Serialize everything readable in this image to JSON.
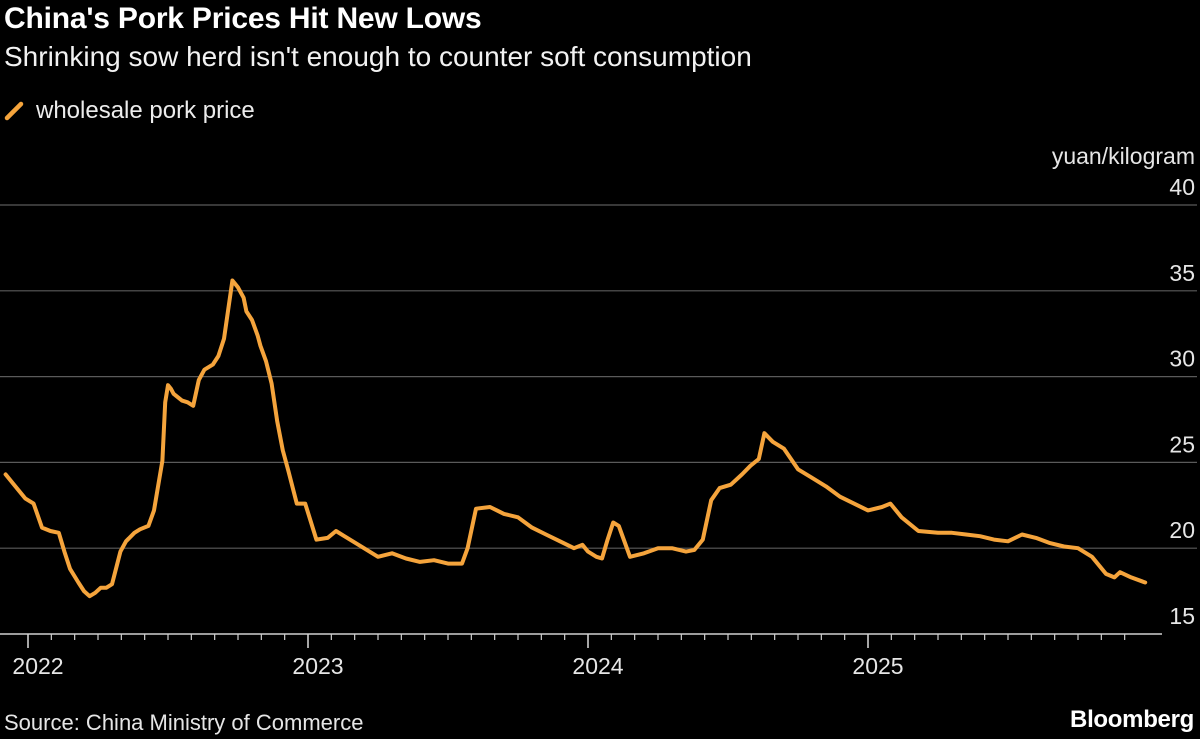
{
  "header": {
    "title": "China's Pork Prices Hit New Lows",
    "subtitle": "Shrinking sow herd isn't enough to counter soft consumption"
  },
  "footer": {
    "source": "Source: China Ministry of Commerce",
    "brand": "Bloomberg"
  },
  "colors": {
    "background": "#000000",
    "series": "#F5A43C",
    "grid": "#5a5a5a",
    "text": "#e6e6e6"
  },
  "chart_data": {
    "type": "line",
    "title": "China's Pork Prices Hit New Lows",
    "subtitle": "Shrinking sow herd isn't enough to counter soft consumption",
    "ylabel": "yuan/kilogram",
    "xlabel": "",
    "ylim": [
      15,
      40
    ],
    "xlim": [
      2021.9,
      2026.05
    ],
    "yticks": [
      15,
      20,
      25,
      30,
      35,
      40
    ],
    "xticks": [
      {
        "value": 2022,
        "label": "2022"
      },
      {
        "value": 2023,
        "label": "2023"
      },
      {
        "value": 2024,
        "label": "2024"
      },
      {
        "value": 2025,
        "label": "2025"
      }
    ],
    "grid": true,
    "legend": "top-left",
    "series": [
      {
        "name": "wholesale pork price",
        "x": [
          2021.92,
          2021.96,
          2021.99,
          2022.02,
          2022.05,
          2022.08,
          2022.11,
          2022.13,
          2022.15,
          2022.18,
          2022.2,
          2022.22,
          2022.24,
          2022.26,
          2022.28,
          2022.3,
          2022.33,
          2022.35,
          2022.38,
          2022.4,
          2022.43,
          2022.45,
          2022.48,
          2022.49,
          2022.5,
          2022.51,
          2022.52,
          2022.55,
          2022.57,
          2022.59,
          2022.61,
          2022.63,
          2022.66,
          2022.68,
          2022.7,
          2022.73,
          2022.75,
          2022.77,
          2022.78,
          2022.8,
          2022.82,
          2022.83,
          2022.85,
          2022.87,
          2022.89,
          2022.91,
          2022.93,
          2022.96,
          2022.99,
          2023.03,
          2023.07,
          2023.1,
          2023.13,
          2023.16,
          2023.2,
          2023.25,
          2023.3,
          2023.35,
          2023.4,
          2023.45,
          2023.5,
          2023.55,
          2023.57,
          2023.6,
          2023.65,
          2023.7,
          2023.75,
          2023.8,
          2023.85,
          2023.9,
          2023.95,
          2023.98,
          2024.0,
          2024.03,
          2024.05,
          2024.07,
          2024.09,
          2024.11,
          2024.15,
          2024.2,
          2024.25,
          2024.3,
          2024.35,
          2024.38,
          2024.41,
          2024.44,
          2024.47,
          2024.51,
          2024.55,
          2024.58,
          2024.61,
          2024.63,
          2024.66,
          2024.7,
          2024.75,
          2024.8,
          2024.85,
          2024.9,
          2024.95,
          2025.0,
          2025.05,
          2025.08,
          2025.12,
          2025.18,
          2025.25,
          2025.3,
          2025.35,
          2025.4,
          2025.45,
          2025.5,
          2025.55,
          2025.6,
          2025.65,
          2025.7,
          2025.75,
          2025.8,
          2025.85,
          2025.88,
          2025.9,
          2025.94,
          2025.99
        ],
        "values": [
          24.3,
          23.5,
          22.9,
          22.6,
          21.2,
          21.0,
          20.9,
          19.8,
          18.8,
          18.0,
          17.5,
          17.2,
          17.4,
          17.7,
          17.7,
          17.9,
          19.8,
          20.4,
          20.9,
          21.1,
          21.3,
          22.2,
          25.1,
          28.5,
          29.5,
          29.3,
          29.0,
          28.6,
          28.5,
          28.3,
          29.8,
          30.4,
          30.7,
          31.2,
          32.2,
          35.6,
          35.2,
          34.6,
          33.8,
          33.3,
          32.4,
          31.8,
          30.9,
          29.6,
          27.4,
          25.7,
          24.5,
          22.6,
          22.6,
          20.5,
          20.6,
          21.0,
          20.7,
          20.4,
          20.0,
          19.5,
          19.7,
          19.4,
          19.2,
          19.3,
          19.1,
          19.1,
          20.0,
          22.3,
          22.4,
          22.0,
          21.8,
          21.2,
          20.8,
          20.4,
          20.0,
          20.2,
          19.8,
          19.5,
          19.4,
          20.5,
          21.5,
          21.3,
          19.5,
          19.7,
          20.0,
          20.0,
          19.8,
          19.9,
          20.5,
          22.8,
          23.5,
          23.7,
          24.3,
          24.8,
          25.2,
          26.7,
          26.2,
          25.8,
          24.6,
          24.1,
          23.6,
          23.0,
          22.6,
          22.2,
          22.4,
          22.6,
          21.8,
          21.0,
          20.9,
          20.9,
          20.8,
          20.7,
          20.5,
          20.4,
          20.8,
          20.6,
          20.3,
          20.1,
          20.0,
          19.5,
          18.5,
          18.3,
          18.6,
          18.3,
          18.0
        ]
      }
    ]
  }
}
